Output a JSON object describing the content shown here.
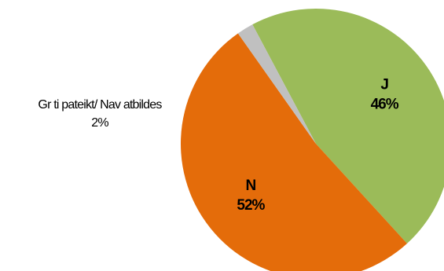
{
  "chart_data": {
    "type": "pie",
    "title": "",
    "slices": [
      {
        "label": "J",
        "value": 46,
        "display": "46%",
        "color": "#9bbb59"
      },
      {
        "label": "N",
        "value": 52,
        "display": "52%",
        "color": "#e46c0a"
      },
      {
        "label": "Gr  ti pateikt/ Nav atbildes",
        "value": 2,
        "display": "2%",
        "color": "#c0c0c0"
      }
    ],
    "legend": "none",
    "labels": "on-chart"
  }
}
